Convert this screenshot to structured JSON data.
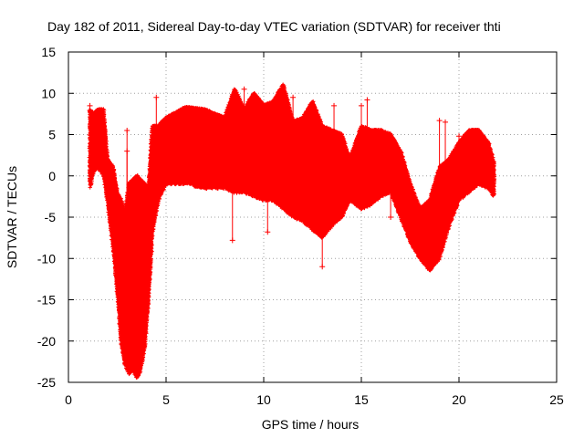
{
  "chart_data": {
    "type": "scatter",
    "title": "Day 182 of 2011, Sidereal Day-to-day VTEC variation (SDTVAR) for receiver thti",
    "xlabel": "GPS time / hours",
    "ylabel": "SDTVAR / TECUs",
    "xlim": [
      0,
      25
    ],
    "ylim": [
      -25,
      15
    ],
    "xticks": [
      0,
      5,
      10,
      15,
      20,
      25
    ],
    "yticks": [
      -25,
      -20,
      -15,
      -10,
      -5,
      0,
      5,
      10,
      15
    ],
    "grid": true,
    "marker": "+",
    "color": "#ff0000",
    "series": [
      {
        "name": "SDTVAR",
        "envelope": [
          {
            "x": 1.1,
            "lo": -1.5,
            "hi": 8.0
          },
          {
            "x": 1.3,
            "lo": 0.5,
            "hi": 7.5
          },
          {
            "x": 1.5,
            "lo": 1.0,
            "hi": 8.0
          },
          {
            "x": 1.8,
            "lo": 0.0,
            "hi": 8.0
          },
          {
            "x": 2.0,
            "lo": -3.0,
            "hi": 2.0
          },
          {
            "x": 2.3,
            "lo": -9.0,
            "hi": 1.0
          },
          {
            "x": 2.5,
            "lo": -14.0,
            "hi": -2.0
          },
          {
            "x": 2.7,
            "lo": -20.0,
            "hi": -3.0
          },
          {
            "x": 2.9,
            "lo": -23.0,
            "hi": -4.5
          },
          {
            "x": 3.1,
            "lo": -24.0,
            "hi": -1.0
          },
          {
            "x": 3.3,
            "lo": -23.5,
            "hi": -0.5
          },
          {
            "x": 3.5,
            "lo": -24.5,
            "hi": 0.0
          },
          {
            "x": 3.7,
            "lo": -23.5,
            "hi": -0.5
          },
          {
            "x": 3.9,
            "lo": -21.0,
            "hi": -1.0
          },
          {
            "x": 4.1,
            "lo": -15.0,
            "hi": -1.5
          },
          {
            "x": 4.3,
            "lo": -7.0,
            "hi": 6.0
          },
          {
            "x": 4.6,
            "lo": -3.0,
            "hi": 6.0
          },
          {
            "x": 5.0,
            "lo": -1.0,
            "hi": 7.0
          },
          {
            "x": 6.0,
            "lo": -1.0,
            "hi": 8.3
          },
          {
            "x": 7.0,
            "lo": -1.5,
            "hi": 8.0
          },
          {
            "x": 8.0,
            "lo": -1.5,
            "hi": 7.0
          },
          {
            "x": 8.5,
            "lo": -2.0,
            "hi": 10.5
          },
          {
            "x": 9.0,
            "lo": -2.0,
            "hi": 8.0
          },
          {
            "x": 9.5,
            "lo": -2.5,
            "hi": 10.0
          },
          {
            "x": 10.0,
            "lo": -3.0,
            "hi": 8.5
          },
          {
            "x": 10.5,
            "lo": -3.0,
            "hi": 9.0
          },
          {
            "x": 11.0,
            "lo": -4.0,
            "hi": 11.0
          },
          {
            "x": 11.5,
            "lo": -5.0,
            "hi": 6.5
          },
          {
            "x": 12.0,
            "lo": -5.5,
            "hi": 7.0
          },
          {
            "x": 12.5,
            "lo": -6.5,
            "hi": 9.0
          },
          {
            "x": 13.0,
            "lo": -7.5,
            "hi": 6.0
          },
          {
            "x": 13.5,
            "lo": -6.0,
            "hi": 5.5
          },
          {
            "x": 14.0,
            "lo": -5.0,
            "hi": 5.0
          },
          {
            "x": 14.4,
            "lo": -3.0,
            "hi": 2.0
          },
          {
            "x": 15.0,
            "lo": -4.0,
            "hi": 6.0
          },
          {
            "x": 15.5,
            "lo": -3.5,
            "hi": 5.5
          },
          {
            "x": 16.0,
            "lo": -2.5,
            "hi": 5.5
          },
          {
            "x": 16.5,
            "lo": -2.0,
            "hi": 5.0
          },
          {
            "x": 17.0,
            "lo": -5.0,
            "hi": 3.0
          },
          {
            "x": 17.5,
            "lo": -8.0,
            "hi": -1.0
          },
          {
            "x": 18.0,
            "lo": -10.0,
            "hi": -4.0
          },
          {
            "x": 18.5,
            "lo": -11.5,
            "hi": -3.0
          },
          {
            "x": 19.0,
            "lo": -10.0,
            "hi": 1.0
          },
          {
            "x": 19.5,
            "lo": -6.0,
            "hi": 2.0
          },
          {
            "x": 20.0,
            "lo": -3.0,
            "hi": 4.0
          },
          {
            "x": 20.5,
            "lo": -2.0,
            "hi": 5.5
          },
          {
            "x": 21.0,
            "lo": -1.0,
            "hi": 5.5
          },
          {
            "x": 21.5,
            "lo": -1.5,
            "hi": 4.0
          },
          {
            "x": 21.8,
            "lo": -2.5,
            "hi": 1.5
          }
        ],
        "outliers": [
          {
            "x": 1.1,
            "y": 8.5
          },
          {
            "x": 2.0,
            "y": 1.5
          },
          {
            "x": 3.0,
            "y": 5.5
          },
          {
            "x": 3.0,
            "y": 3.0
          },
          {
            "x": 4.5,
            "y": 9.5
          },
          {
            "x": 8.4,
            "y": -7.8
          },
          {
            "x": 9.0,
            "y": 10.5
          },
          {
            "x": 10.2,
            "y": -6.8
          },
          {
            "x": 11.5,
            "y": 9.5
          },
          {
            "x": 12.5,
            "y": 8.5
          },
          {
            "x": 13.0,
            "y": -11.0
          },
          {
            "x": 13.6,
            "y": 8.5
          },
          {
            "x": 15.0,
            "y": 8.5
          },
          {
            "x": 15.3,
            "y": 9.2
          },
          {
            "x": 16.5,
            "y": -5.0
          },
          {
            "x": 19.0,
            "y": 6.7
          },
          {
            "x": 19.3,
            "y": 6.5
          },
          {
            "x": 20.0,
            "y": 4.8
          }
        ]
      }
    ]
  }
}
